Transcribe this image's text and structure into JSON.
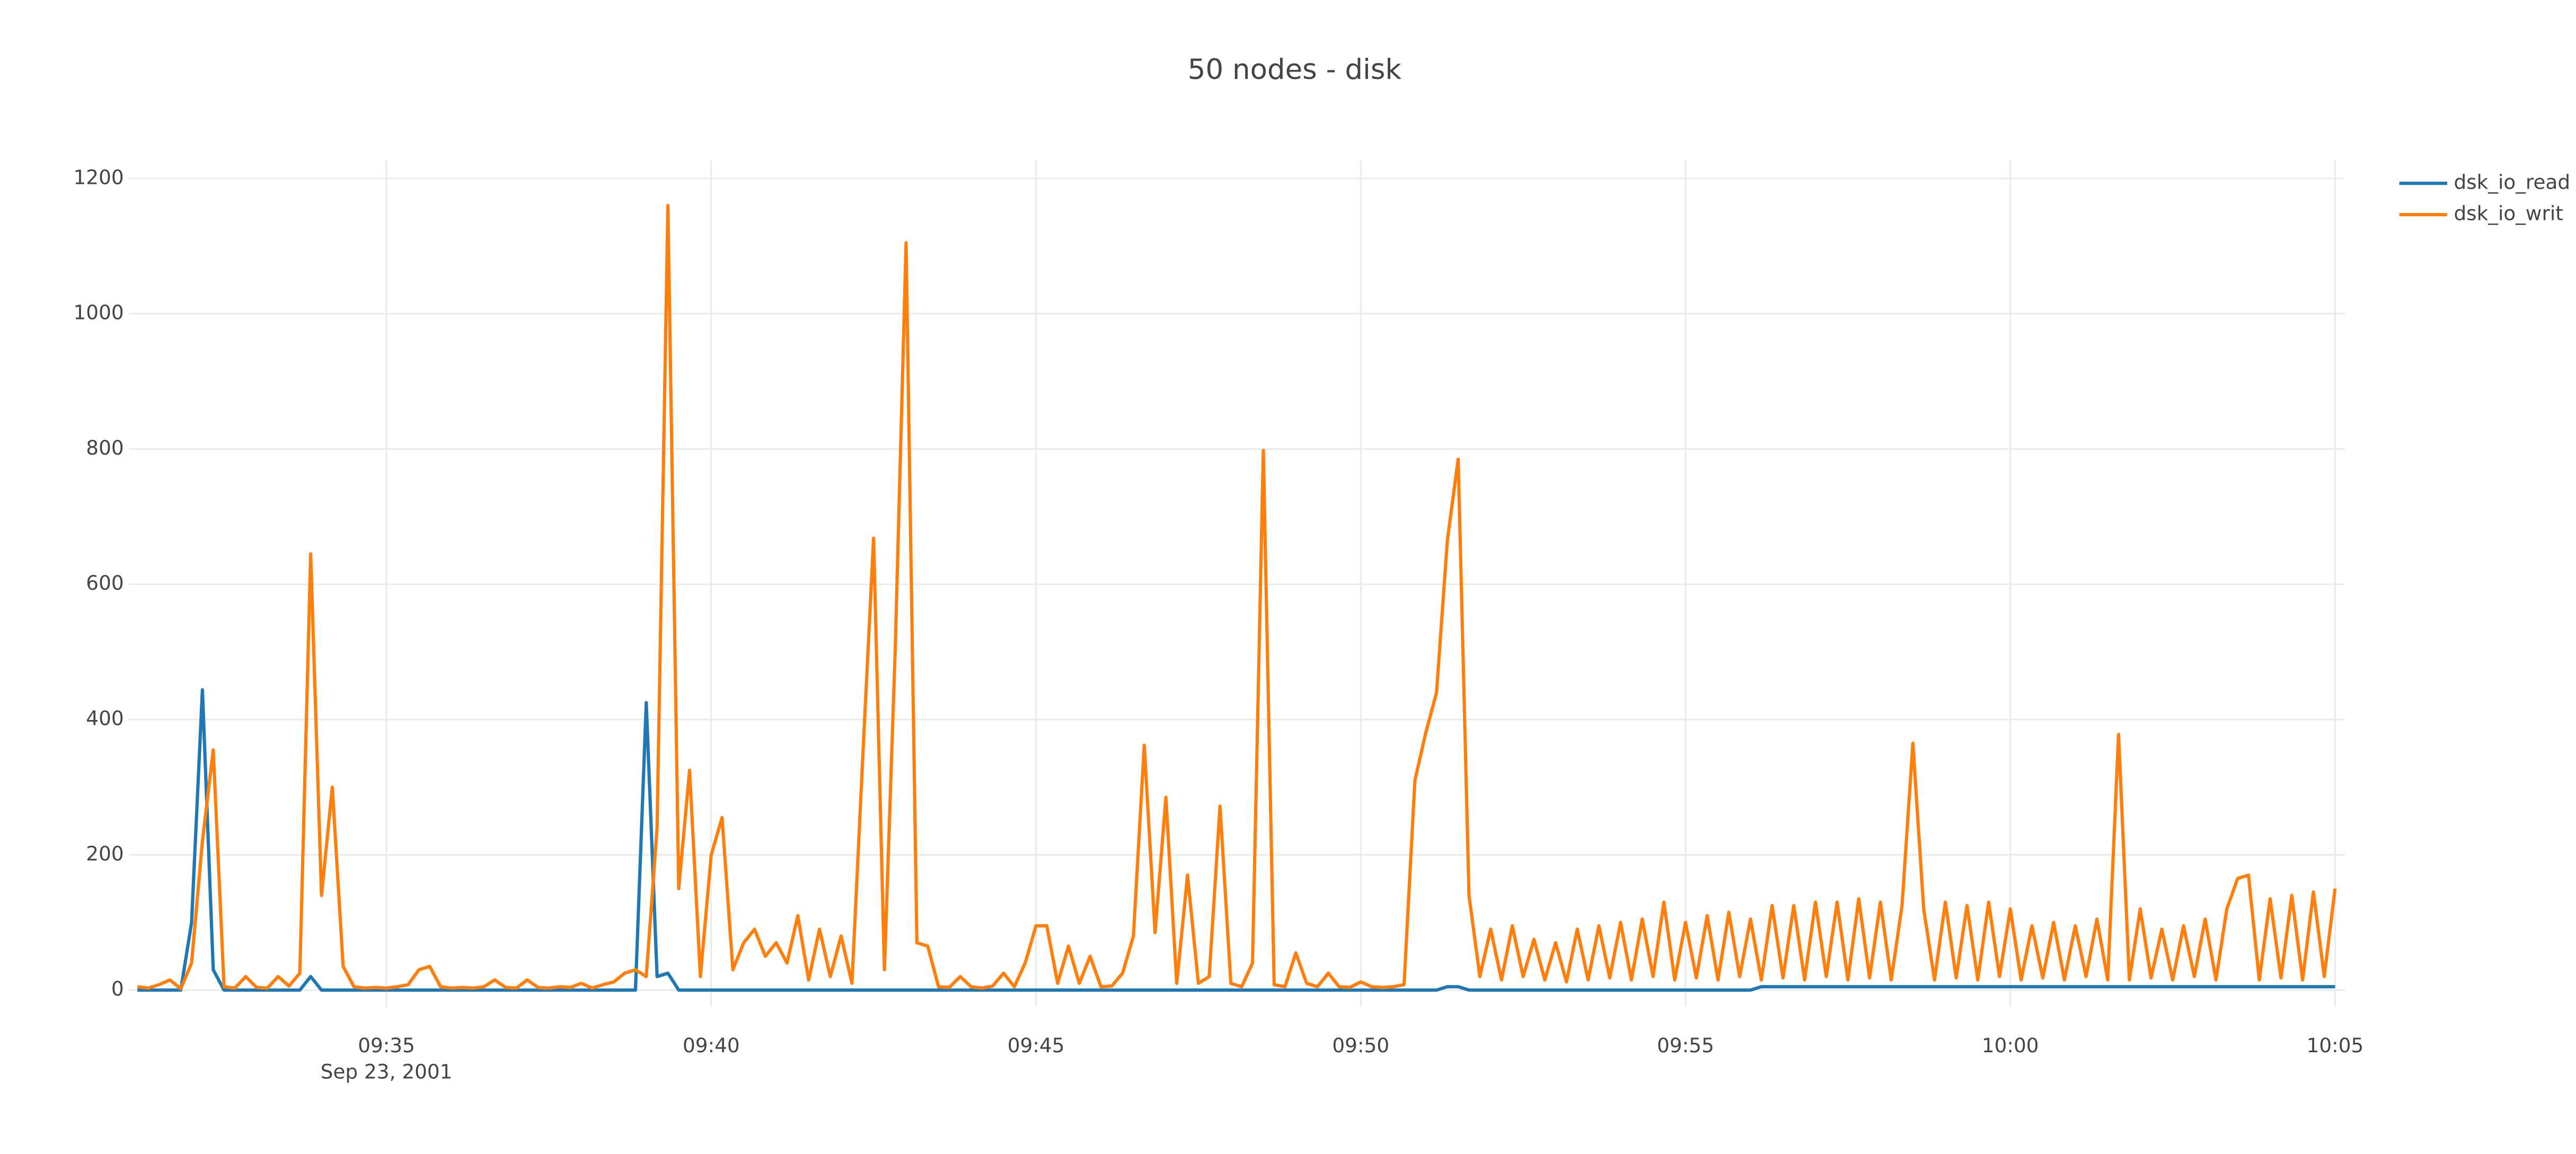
{
  "chart_data": {
    "type": "line",
    "title": "50 nodes - disk",
    "x_date_label": "Sep 23, 2001",
    "x": [
      "09:31:10",
      "09:31:20",
      "09:31:30",
      "09:31:40",
      "09:31:50",
      "09:32:00",
      "09:32:10",
      "09:32:20",
      "09:32:30",
      "09:32:40",
      "09:32:50",
      "09:33:00",
      "09:33:10",
      "09:33:20",
      "09:33:30",
      "09:33:40",
      "09:33:50",
      "09:34:00",
      "09:34:10",
      "09:34:20",
      "09:34:30",
      "09:34:40",
      "09:34:50",
      "09:35:00",
      "09:35:10",
      "09:35:20",
      "09:35:30",
      "09:35:40",
      "09:35:50",
      "09:36:00",
      "09:36:10",
      "09:36:20",
      "09:36:30",
      "09:36:40",
      "09:36:50",
      "09:37:00",
      "09:37:10",
      "09:37:20",
      "09:37:30",
      "09:37:40",
      "09:37:50",
      "09:38:00",
      "09:38:10",
      "09:38:20",
      "09:38:30",
      "09:38:40",
      "09:38:50",
      "09:39:00",
      "09:39:10",
      "09:39:20",
      "09:39:30",
      "09:39:40",
      "09:39:50",
      "09:40:00",
      "09:40:10",
      "09:40:20",
      "09:40:30",
      "09:40:40",
      "09:40:50",
      "09:41:00",
      "09:41:10",
      "09:41:20",
      "09:41:30",
      "09:41:40",
      "09:41:50",
      "09:42:00",
      "09:42:10",
      "09:42:20",
      "09:42:30",
      "09:42:40",
      "09:42:50",
      "09:43:00",
      "09:43:10",
      "09:43:20",
      "09:43:30",
      "09:43:40",
      "09:43:50",
      "09:44:00",
      "09:44:10",
      "09:44:20",
      "09:44:30",
      "09:44:40",
      "09:44:50",
      "09:45:00",
      "09:45:10",
      "09:45:20",
      "09:45:30",
      "09:45:40",
      "09:45:50",
      "09:46:00",
      "09:46:10",
      "09:46:20",
      "09:46:30",
      "09:46:40",
      "09:46:50",
      "09:47:00",
      "09:47:10",
      "09:47:20",
      "09:47:30",
      "09:47:40",
      "09:47:50",
      "09:48:00",
      "09:48:10",
      "09:48:20",
      "09:48:30",
      "09:48:40",
      "09:48:50",
      "09:49:00",
      "09:49:10",
      "09:49:20",
      "09:49:30",
      "09:49:40",
      "09:49:50",
      "09:50:00",
      "09:50:10",
      "09:50:20",
      "09:50:30",
      "09:50:40",
      "09:50:50",
      "09:51:00",
      "09:51:10",
      "09:51:20",
      "09:51:30",
      "09:51:40",
      "09:51:50",
      "09:52:00",
      "09:52:10",
      "09:52:20",
      "09:52:30",
      "09:52:40",
      "09:52:50",
      "09:53:00",
      "09:53:10",
      "09:53:20",
      "09:53:30",
      "09:53:40",
      "09:53:50",
      "09:54:00",
      "09:54:10",
      "09:54:20",
      "09:54:30",
      "09:54:40",
      "09:54:50",
      "09:55:00",
      "09:55:10",
      "09:55:20",
      "09:55:30",
      "09:55:40",
      "09:55:50",
      "09:56:00",
      "09:56:10",
      "09:56:20",
      "09:56:30",
      "09:56:40",
      "09:56:50",
      "09:57:00",
      "09:57:10",
      "09:57:20",
      "09:57:30",
      "09:57:40",
      "09:57:50",
      "09:58:00",
      "09:58:10",
      "09:58:20",
      "09:58:30",
      "09:58:40",
      "09:58:50",
      "09:59:00",
      "09:59:10",
      "09:59:20",
      "09:59:30",
      "09:59:40",
      "09:59:50",
      "10:00:00",
      "10:00:10",
      "10:00:20",
      "10:00:30",
      "10:00:40",
      "10:00:50",
      "10:01:00",
      "10:01:10",
      "10:01:20",
      "10:01:30",
      "10:01:40",
      "10:01:50",
      "10:02:00",
      "10:02:10",
      "10:02:20",
      "10:02:30",
      "10:02:40",
      "10:02:50",
      "10:03:00",
      "10:03:10",
      "10:03:20",
      "10:03:30",
      "10:03:40",
      "10:03:50",
      "10:04:00",
      "10:04:10",
      "10:04:20",
      "10:04:30",
      "10:04:40",
      "10:04:50",
      "10:05:00"
    ],
    "series": [
      {
        "name": "dsk_io_read",
        "color": "#1f77b4",
        "values": [
          0,
          0,
          0,
          0,
          0,
          100,
          444,
          30,
          0,
          0,
          0,
          0,
          0,
          0,
          0,
          0,
          20,
          0,
          0,
          0,
          0,
          0,
          0,
          0,
          0,
          0,
          0,
          0,
          0,
          0,
          0,
          0,
          0,
          0,
          0,
          0,
          0,
          0,
          0,
          0,
          0,
          0,
          0,
          0,
          0,
          0,
          0,
          425,
          20,
          25,
          0,
          0,
          0,
          0,
          0,
          0,
          0,
          0,
          0,
          0,
          0,
          0,
          0,
          0,
          0,
          0,
          0,
          0,
          0,
          0,
          0,
          0,
          0,
          0,
          0,
          0,
          0,
          0,
          0,
          0,
          0,
          0,
          0,
          0,
          0,
          0,
          0,
          0,
          0,
          0,
          0,
          0,
          0,
          0,
          0,
          0,
          0,
          0,
          0,
          0,
          0,
          0,
          0,
          0,
          0,
          0,
          0,
          0,
          0,
          0,
          0,
          0,
          0,
          0,
          0,
          0,
          0,
          0,
          0,
          0,
          0,
          5,
          5,
          0,
          0,
          0,
          0,
          0,
          0,
          0,
          0,
          0,
          0,
          0,
          0,
          0,
          0,
          0,
          0,
          0,
          0,
          0,
          0,
          0,
          0,
          0,
          0,
          0,
          0,
          0,
          5,
          5,
          5,
          5,
          5,
          5,
          5,
          5,
          5,
          5,
          5,
          5,
          5,
          5,
          5,
          5,
          5,
          5,
          5,
          5,
          5,
          5,
          5,
          5,
          5,
          5,
          5,
          5,
          5,
          5,
          5,
          5,
          5,
          5,
          5,
          5,
          5,
          5,
          5,
          5,
          5,
          5,
          5,
          5,
          5,
          5,
          5,
          5,
          5,
          5,
          5,
          5,
          5,
          5
        ]
      },
      {
        "name": "dsk_io_writ",
        "color": "#ff7f0e",
        "values": [
          5,
          3,
          8,
          15,
          2,
          40,
          220,
          355,
          5,
          3,
          20,
          4,
          3,
          20,
          6,
          25,
          645,
          140,
          300,
          35,
          5,
          3,
          4,
          3,
          5,
          8,
          30,
          35,
          5,
          3,
          4,
          3,
          5,
          15,
          4,
          3,
          15,
          4,
          3,
          5,
          4,
          10,
          3,
          8,
          12,
          25,
          30,
          20,
          240,
          1160,
          150,
          325,
          20,
          200,
          255,
          30,
          70,
          90,
          50,
          70,
          40,
          110,
          15,
          90,
          20,
          80,
          10,
          345,
          668,
          30,
          505,
          1105,
          70,
          65,
          5,
          4,
          20,
          5,
          3,
          6,
          25,
          5,
          40,
          95,
          95,
          10,
          65,
          10,
          50,
          5,
          6,
          25,
          80,
          362,
          85,
          285,
          10,
          170,
          10,
          20,
          272,
          10,
          5,
          40,
          798,
          8,
          5,
          55,
          10,
          5,
          25,
          5,
          4,
          12,
          5,
          4,
          5,
          8,
          310,
          380,
          440,
          665,
          785,
          140,
          20,
          90,
          15,
          95,
          20,
          75,
          15,
          70,
          12,
          90,
          15,
          95,
          18,
          100,
          15,
          105,
          20,
          130,
          15,
          100,
          18,
          110,
          15,
          115,
          20,
          105,
          15,
          125,
          18,
          125,
          15,
          130,
          20,
          130,
          15,
          135,
          18,
          130,
          15,
          125,
          365,
          120,
          15,
          130,
          18,
          125,
          15,
          130,
          20,
          120,
          15,
          95,
          18,
          100,
          15,
          95,
          20,
          105,
          15,
          378,
          15,
          120,
          18,
          90,
          15,
          95,
          20,
          105,
          15,
          120,
          165,
          170,
          15,
          135,
          18,
          140,
          15,
          145,
          20,
          150
        ]
      }
    ],
    "xlim": [
      "09:31:02",
      "10:05:09"
    ],
    "xticks": [
      "09:35",
      "09:40",
      "09:45",
      "09:50",
      "09:55",
      "10:00",
      "10:05"
    ],
    "ylim": [
      -25,
      1227
    ],
    "yticks": [
      0,
      200,
      400,
      600,
      800,
      1000,
      1200
    ],
    "grid": true,
    "legend": "top-right"
  }
}
